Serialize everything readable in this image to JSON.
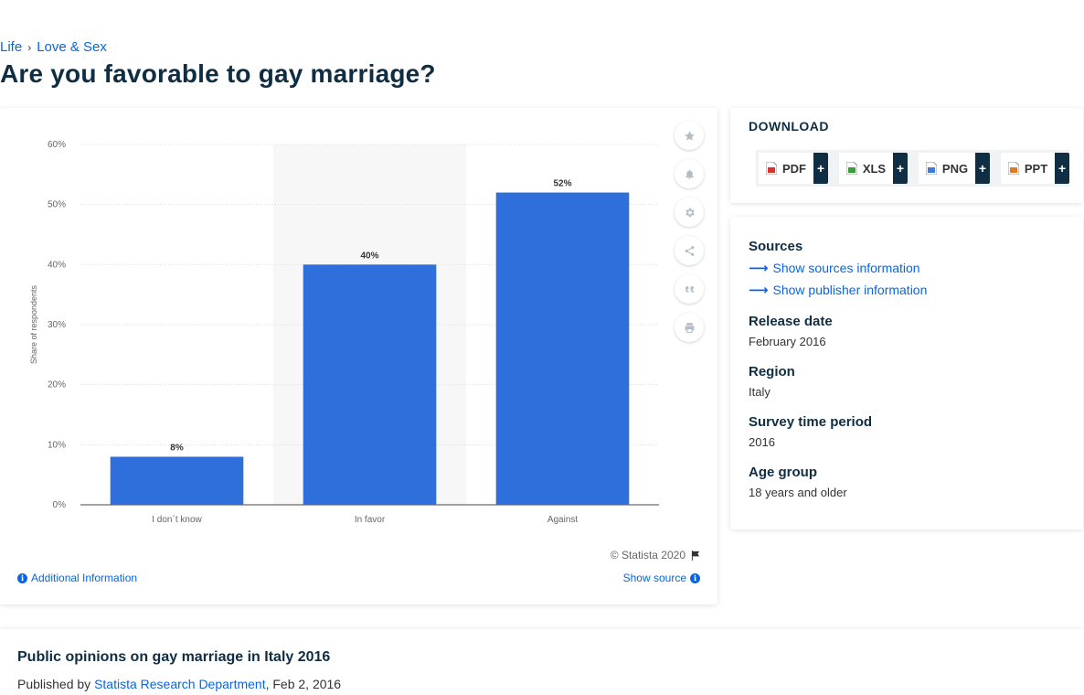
{
  "breadcrumb": {
    "items": [
      "Life",
      "Love & Sex"
    ]
  },
  "page_title": "Are you favorable to gay marriage?",
  "chart_data": {
    "type": "bar",
    "categories": [
      "I don´t know",
      "In favor",
      "Against"
    ],
    "values": [
      8,
      40,
      52
    ],
    "value_labels": [
      "8%",
      "40%",
      "52%"
    ],
    "title": "",
    "xlabel": "",
    "ylabel": "Share of respondents",
    "ylim": [
      0,
      60
    ],
    "yticks": [
      "0%",
      "10%",
      "20%",
      "30%",
      "40%",
      "50%",
      "60%"
    ],
    "grid": true,
    "bar_color": "#2f6fdb"
  },
  "chart_footer": {
    "copyright": "© Statista 2020",
    "additional_info": "Additional Information",
    "show_source": "Show source"
  },
  "download": {
    "title": "DOWNLOAD",
    "buttons": [
      {
        "label": "PDF",
        "icon": "pdf-file-icon",
        "color": "#d9342b"
      },
      {
        "label": "XLS",
        "icon": "xls-file-icon",
        "color": "#3a9d3a"
      },
      {
        "label": "PNG",
        "icon": "png-file-icon",
        "color": "#3b7dd8"
      },
      {
        "label": "PPT",
        "icon": "ppt-file-icon",
        "color": "#e07a25"
      }
    ],
    "plus": "+"
  },
  "info": {
    "sources_label": "Sources",
    "show_sources": "Show sources information",
    "show_publisher": "Show publisher information",
    "release_date_label": "Release date",
    "release_date": "February 2016",
    "region_label": "Region",
    "region": "Italy",
    "survey_period_label": "Survey time period",
    "survey_period": "2016",
    "age_group_label": "Age group",
    "age_group": "18 years and older"
  },
  "publication": {
    "title": "Public opinions on gay marriage in Italy 2016",
    "published_by_prefix": "Published by",
    "publisher": "Statista Research Department",
    "date": ", Feb 2, 2016"
  },
  "colors": {
    "accent": "#0666e5",
    "dark": "#0f2d43"
  }
}
